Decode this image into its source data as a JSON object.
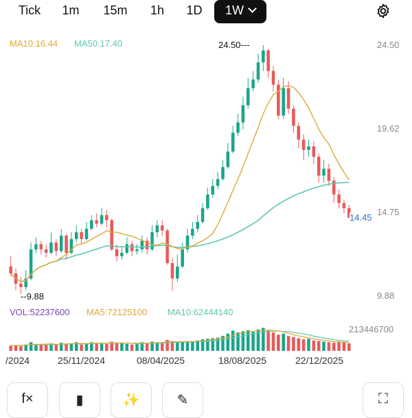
{
  "timeframes": [
    {
      "label": "Tick"
    },
    {
      "label": "1m"
    },
    {
      "label": "15m"
    },
    {
      "label": "1h"
    },
    {
      "label": "1D"
    },
    {
      "label": "1W",
      "active": true
    }
  ],
  "legend": {
    "ma10": "MA10:16.44",
    "ma50": "MA50:17.40"
  },
  "price_axis": [
    "24.50",
    "19.62",
    "14.75",
    "9.88"
  ],
  "current_price": "14.45",
  "high_label": "24.50",
  "low_label": "9.88",
  "volume": {
    "vol": "VOL:52237600",
    "ma5": "MA5:72125100",
    "ma10": "MA10:62444140",
    "max_label": "213446700"
  },
  "x_axis": [
    "/2024",
    "25/11/2024",
    "08/04/2025",
    "18/08/2025",
    "22/12/2025"
  ],
  "toolbar": [
    {
      "icon": "function-icon",
      "glyph": "f×"
    },
    {
      "icon": "candlestick-icon",
      "glyph": "▮"
    },
    {
      "icon": "ai-sparkle-icon",
      "glyph": "✨"
    },
    {
      "icon": "pencil-icon",
      "glyph": "✎"
    },
    {
      "icon": "fullscreen-icon",
      "glyph": "⛶"
    }
  ],
  "colors": {
    "up": "#1aa58a",
    "down": "#e85a5a",
    "ma10": "#e0a734",
    "ma50": "#5cc7b2"
  },
  "chart_data": {
    "type": "candlestick",
    "ylim": [
      9.88,
      24.5
    ],
    "candles": [
      [
        11.6,
        11.2,
        12.2,
        11.0
      ],
      [
        11.2,
        10.6,
        11.5,
        10.2
      ],
      [
        10.6,
        10.4,
        11.0,
        10.0
      ],
      [
        10.4,
        10.9,
        11.4,
        10.2
      ],
      [
        10.9,
        12.6,
        13.0,
        10.8
      ],
      [
        12.6,
        12.9,
        13.3,
        12.4
      ],
      [
        12.9,
        12.6,
        13.1,
        12.3
      ],
      [
        12.6,
        12.4,
        12.9,
        12.1
      ],
      [
        12.4,
        13.0,
        13.6,
        12.3
      ],
      [
        13.0,
        12.5,
        13.2,
        12.2
      ],
      [
        12.5,
        13.4,
        13.8,
        12.4
      ],
      [
        13.4,
        12.4,
        13.5,
        12.0
      ],
      [
        12.4,
        13.2,
        13.6,
        12.3
      ],
      [
        13.2,
        13.6,
        14.0,
        13.0
      ],
      [
        13.6,
        13.2,
        13.8,
        12.9
      ],
      [
        13.2,
        13.8,
        14.2,
        13.1
      ],
      [
        13.8,
        14.3,
        14.6,
        13.7
      ],
      [
        14.3,
        14.1,
        14.7,
        13.9
      ],
      [
        14.1,
        14.6,
        15.0,
        14.0
      ],
      [
        14.6,
        14.3,
        14.9,
        13.9
      ],
      [
        14.3,
        12.6,
        14.4,
        12.5
      ],
      [
        12.6,
        12.2,
        12.9,
        11.9
      ],
      [
        12.2,
        12.4,
        12.8,
        12.0
      ],
      [
        12.4,
        12.9,
        13.3,
        12.3
      ],
      [
        12.9,
        12.5,
        13.1,
        12.2
      ],
      [
        12.5,
        12.6,
        12.9,
        12.3
      ],
      [
        12.6,
        13.1,
        13.4,
        12.4
      ],
      [
        13.1,
        12.6,
        13.3,
        12.3
      ],
      [
        12.6,
        13.6,
        14.0,
        12.5
      ],
      [
        13.6,
        14.0,
        14.3,
        13.3
      ],
      [
        14.0,
        13.7,
        14.3,
        13.4
      ],
      [
        13.7,
        11.8,
        13.8,
        11.7
      ],
      [
        11.8,
        10.9,
        12.1,
        10.2
      ],
      [
        10.9,
        11.6,
        12.3,
        10.7
      ],
      [
        11.6,
        12.6,
        13.0,
        11.5
      ],
      [
        12.6,
        13.4,
        13.8,
        12.4
      ],
      [
        13.4,
        13.8,
        14.2,
        13.2
      ],
      [
        13.8,
        14.2,
        14.6,
        13.6
      ],
      [
        14.2,
        15.0,
        15.3,
        14.1
      ],
      [
        15.0,
        15.8,
        16.2,
        14.9
      ],
      [
        15.8,
        16.3,
        16.7,
        15.6
      ],
      [
        16.3,
        16.7,
        17.1,
        16.1
      ],
      [
        16.7,
        17.4,
        17.8,
        16.6
      ],
      [
        17.4,
        18.3,
        18.8,
        17.3
      ],
      [
        18.3,
        19.4,
        19.8,
        18.2
      ],
      [
        19.4,
        20.0,
        20.5,
        19.2
      ],
      [
        20.0,
        21.0,
        21.5,
        19.6
      ],
      [
        21.0,
        22.0,
        22.6,
        20.8
      ],
      [
        22.0,
        22.5,
        23.0,
        21.8
      ],
      [
        22.5,
        23.5,
        24.0,
        22.3
      ],
      [
        23.5,
        24.2,
        24.5,
        23.0
      ],
      [
        24.2,
        23.0,
        24.3,
        22.6
      ],
      [
        23.0,
        22.2,
        23.3,
        21.8
      ],
      [
        22.2,
        20.4,
        22.5,
        20.2
      ],
      [
        20.4,
        22.0,
        22.6,
        20.2
      ],
      [
        22.0,
        20.8,
        22.4,
        20.5
      ],
      [
        20.8,
        19.8,
        21.0,
        19.4
      ],
      [
        19.8,
        19.0,
        20.0,
        18.5
      ],
      [
        19.0,
        18.4,
        19.3,
        17.8
      ],
      [
        18.4,
        18.6,
        19.0,
        18.0
      ],
      [
        18.6,
        18.0,
        18.9,
        17.6
      ],
      [
        18.0,
        16.9,
        18.2,
        16.5
      ],
      [
        16.9,
        17.3,
        17.8,
        16.5
      ],
      [
        17.3,
        16.6,
        17.6,
        16.3
      ],
      [
        16.6,
        15.8,
        16.8,
        15.3
      ],
      [
        15.8,
        15.3,
        16.1,
        15.0
      ],
      [
        15.3,
        15.0,
        15.5,
        14.7
      ],
      [
        15.0,
        14.45,
        15.2,
        14.4
      ]
    ],
    "volume": [
      0.18,
      0.2,
      0.16,
      0.22,
      0.3,
      0.24,
      0.22,
      0.2,
      0.26,
      0.22,
      0.28,
      0.24,
      0.26,
      0.3,
      0.22,
      0.24,
      0.3,
      0.26,
      0.28,
      0.24,
      0.32,
      0.28,
      0.26,
      0.24,
      0.22,
      0.24,
      0.3,
      0.26,
      0.32,
      0.3,
      0.26,
      0.38,
      0.34,
      0.3,
      0.32,
      0.3,
      0.34,
      0.36,
      0.4,
      0.42,
      0.44,
      0.46,
      0.52,
      0.6,
      0.7,
      0.64,
      0.68,
      0.72,
      0.66,
      0.74,
      0.8,
      0.7,
      0.64,
      0.56,
      0.6,
      0.52,
      0.48,
      0.44,
      0.4,
      0.42,
      0.36,
      0.34,
      0.32,
      0.3,
      0.28,
      0.32,
      0.3,
      0.26
    ]
  }
}
